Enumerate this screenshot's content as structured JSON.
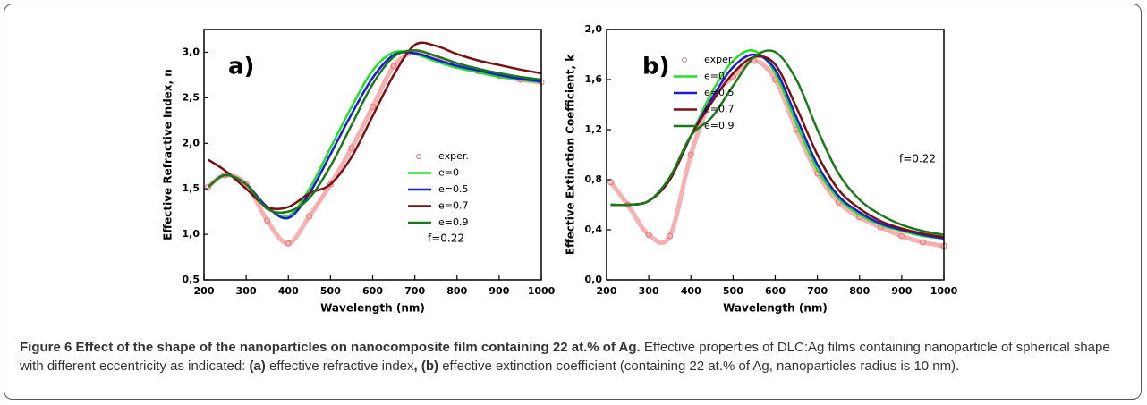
{
  "chart_data": [
    {
      "type": "line",
      "x_label": "Wavelength (nm)",
      "y_label": "Effective Refractive Index, n",
      "x": [
        210,
        250,
        300,
        350,
        400,
        450,
        500,
        550,
        600,
        650,
        700,
        750,
        800,
        850,
        900,
        950,
        1000
      ],
      "series": [
        {
          "name": "exper.",
          "color": "#f07070",
          "marker": "circle",
          "values": [
            1.52,
            1.65,
            1.55,
            1.15,
            0.9,
            1.2,
            1.55,
            1.95,
            2.4,
            2.85,
            3.0,
            2.93,
            2.85,
            2.79,
            2.74,
            2.7,
            2.67
          ]
        },
        {
          "name": "e=0",
          "color": "#22e022",
          "values": [
            1.52,
            1.65,
            1.55,
            1.3,
            1.2,
            1.5,
            1.95,
            2.4,
            2.8,
            3.0,
            2.98,
            2.9,
            2.83,
            2.78,
            2.73,
            2.7,
            2.67
          ]
        },
        {
          "name": "e=0.5",
          "color": "#1a1adc",
          "values": [
            1.52,
            1.65,
            1.55,
            1.3,
            1.18,
            1.45,
            1.88,
            2.32,
            2.72,
            2.97,
            2.99,
            2.92,
            2.85,
            2.8,
            2.75,
            2.71,
            2.68
          ]
        },
        {
          "name": "e=0.7",
          "color": "#7a1010",
          "values": [
            1.82,
            1.7,
            1.5,
            1.3,
            1.3,
            1.45,
            1.55,
            1.85,
            2.3,
            2.75,
            3.08,
            3.07,
            2.98,
            2.91,
            2.86,
            2.81,
            2.77
          ]
        },
        {
          "name": "e=0.9",
          "color": "#1a7a1a",
          "values": [
            1.52,
            1.65,
            1.55,
            1.28,
            1.25,
            1.4,
            1.75,
            2.2,
            2.65,
            2.95,
            3.02,
            2.96,
            2.88,
            2.82,
            2.77,
            2.73,
            2.7
          ]
        }
      ],
      "xlim": [
        200,
        1000
      ],
      "xticks": [
        200,
        300,
        400,
        500,
        600,
        700,
        800,
        900,
        1000
      ],
      "ylim": [
        0.5,
        3.25
      ],
      "yticks": [
        {
          "value": 0.5,
          "label": "0,5"
        },
        {
          "value": 1.0,
          "label": "1,0"
        },
        {
          "value": 1.5,
          "label": "1,5"
        },
        {
          "value": 2.0,
          "label": "2,0"
        },
        {
          "value": 2.5,
          "label": "2,5"
        },
        {
          "value": 3.0,
          "label": "3,0"
        }
      ],
      "legend": "center right",
      "annotations": [
        "a)",
        "f=0.22"
      ]
    },
    {
      "type": "line",
      "x_label": "Wavelength (nm)",
      "y_label": "Effective Extinction Coefficient, k",
      "x": [
        210,
        250,
        300,
        350,
        400,
        450,
        500,
        550,
        600,
        650,
        700,
        750,
        800,
        850,
        900,
        950,
        1000
      ],
      "series": [
        {
          "name": "exper.",
          "color": "#f07070",
          "marker": "circle",
          "values": [
            0.78,
            0.6,
            0.36,
            0.35,
            1.0,
            1.45,
            1.62,
            1.75,
            1.6,
            1.2,
            0.85,
            0.62,
            0.5,
            0.42,
            0.35,
            0.3,
            0.27
          ]
        },
        {
          "name": "e=0",
          "color": "#22e022",
          "values": [
            0.6,
            0.6,
            0.63,
            0.8,
            1.15,
            1.5,
            1.75,
            1.83,
            1.65,
            1.25,
            0.88,
            0.65,
            0.52,
            0.44,
            0.39,
            0.35,
            0.33
          ]
        },
        {
          "name": "e=0.5",
          "color": "#1a1adc",
          "values": [
            0.6,
            0.6,
            0.63,
            0.8,
            1.15,
            1.45,
            1.7,
            1.8,
            1.68,
            1.3,
            0.92,
            0.67,
            0.54,
            0.45,
            0.4,
            0.36,
            0.33
          ]
        },
        {
          "name": "e=0.7",
          "color": "#7a1010",
          "values": [
            0.6,
            0.6,
            0.63,
            0.8,
            1.15,
            1.42,
            1.65,
            1.78,
            1.72,
            1.38,
            1.0,
            0.72,
            0.57,
            0.47,
            0.41,
            0.37,
            0.34
          ]
        },
        {
          "name": "e=0.9",
          "color": "#1a7a1a",
          "values": [
            0.6,
            0.6,
            0.63,
            0.82,
            1.15,
            1.3,
            1.55,
            1.78,
            1.82,
            1.6,
            1.2,
            0.85,
            0.64,
            0.52,
            0.44,
            0.39,
            0.36
          ]
        }
      ],
      "xlim": [
        200,
        1000
      ],
      "xticks": [
        200,
        300,
        400,
        500,
        600,
        700,
        800,
        900,
        1000
      ],
      "ylim": [
        0,
        2.0
      ],
      "yticks": [
        {
          "value": 0,
          "label": "0,0"
        },
        {
          "value": 0.4,
          "label": "0,4"
        },
        {
          "value": 0.8,
          "label": "0,8"
        },
        {
          "value": 1.2,
          "label": "1,2"
        },
        {
          "value": 1.6,
          "label": "1,6"
        },
        {
          "value": 2.0,
          "label": "2,0"
        }
      ],
      "legend": "upper left",
      "annotations": [
        "b)",
        "f=0.22"
      ]
    }
  ],
  "caption": {
    "title": "Figure 6 Effect of the shape of the nanoparticles on nanocomposite film containing 22 at.% of Ag.",
    "body": [
      {
        "text": "Effective properties of DLC:Ag films containing nanoparticle of spherical shape with different eccentricity as indicated:",
        "bold": false
      },
      {
        "text": "(a)",
        "bold": true
      },
      {
        "text": "effective refractive index",
        "bold": false
      },
      {
        "text": ",",
        "bold": true
      },
      {
        "text": "(b)",
        "bold": true
      },
      {
        "text": "effective extinction coefficient (containing 22 at.% of Ag, nanoparticles radius is 10 nm).",
        "bold": false
      }
    ]
  }
}
